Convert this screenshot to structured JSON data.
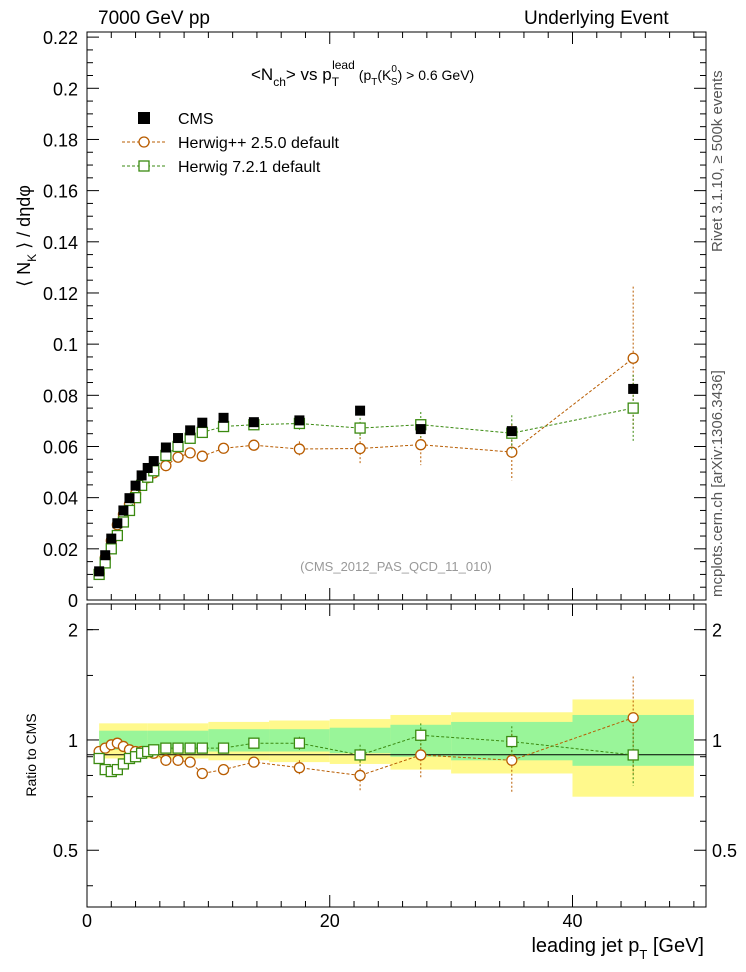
{
  "header": {
    "left": "7000 GeV pp",
    "right": "Underlying Event"
  },
  "side_text": {
    "top": "Rivet 3.1.10, ≥ 500k events",
    "bottom": "mcplots.cern.ch [arXiv:1306.3436]"
  },
  "chart_data": {
    "type": "scatter",
    "title": {
      "main": "<N",
      "main_sub": "ch",
      "mid": "> vs p",
      "pt_sup": "lead",
      "pt_sub": "T",
      "cut_open": "(p",
      "cut_sub": "T",
      "cut_mid": "(K",
      "k_sup": "0",
      "k_sub": "S",
      "cut_close": ") > 0.6 GeV)"
    },
    "ylabel": {
      "pre": "⟨ N",
      "sub": "K",
      "post": " ⟩ / dηdφ"
    },
    "xlabel": {
      "pre": "leading jet p",
      "sub": "T",
      "post": " [GeV]"
    },
    "ratio_ylabel": "Ratio to CMS",
    "watermark": "(CMS_2012_PAS_QCD_11_010)",
    "xlim": [
      0,
      51
    ],
    "ylim": [
      0,
      0.222
    ],
    "ratio_ylim": [
      0.35,
      2.35
    ],
    "x_ticks": [
      "0",
      "20",
      "40"
    ],
    "y_ticks": [
      "0",
      "0.02",
      "0.04",
      "0.06",
      "0.08",
      "0.1",
      "0.12",
      "0.14",
      "0.16",
      "0.18",
      "0.2",
      "0.22"
    ],
    "ratio_ticks": [
      "0.5",
      "1",
      "2"
    ],
    "legend": [
      {
        "name": "CMS",
        "marker": "filled-square",
        "color": "#000000"
      },
      {
        "name": "Herwig++ 2.5.0 default",
        "marker": "open-circle",
        "color": "#b85c00"
      },
      {
        "name": "Herwig 7.2.1 default",
        "marker": "open-square",
        "color": "#3a8a10"
      }
    ],
    "cms": {
      "x": [
        1,
        1.5,
        2,
        2.5,
        3,
        3.5,
        4,
        4.5,
        5,
        5.5,
        6.5,
        7.5,
        8.5,
        9.5,
        11.25,
        13.75,
        17.5,
        22.5,
        27.5,
        35,
        45
      ],
      "y": [
        0.0112,
        0.0175,
        0.024,
        0.03,
        0.035,
        0.0398,
        0.0447,
        0.0487,
        0.0516,
        0.0543,
        0.0596,
        0.0633,
        0.0663,
        0.0693,
        0.0712,
        0.0695,
        0.0702,
        0.074,
        0.0668,
        0.066,
        0.0825
      ]
    },
    "herwig_pp": {
      "x": [
        1,
        1.5,
        2,
        2.5,
        3,
        3.5,
        4,
        4.5,
        5,
        5.5,
        6.5,
        7.5,
        8.5,
        9.5,
        11.25,
        13.75,
        17.5,
        22.5,
        27.5,
        35,
        45
      ],
      "y": [
        0.0103,
        0.0165,
        0.0232,
        0.0294,
        0.0335,
        0.0375,
        0.0415,
        0.0452,
        0.0478,
        0.0497,
        0.0525,
        0.0558,
        0.0575,
        0.0562,
        0.0593,
        0.0605,
        0.059,
        0.0592,
        0.0607,
        0.0578,
        0.0945
      ],
      "yerr": [
        0,
        0,
        0,
        0,
        0,
        0,
        0,
        0,
        0,
        0,
        0,
        0,
        0,
        0,
        0,
        0,
        0.003,
        0.006,
        0.008,
        0.011,
        0.028
      ]
    },
    "herwig7": {
      "x": [
        1,
        1.5,
        2,
        2.5,
        3,
        3.5,
        4,
        4.5,
        5,
        5.5,
        6.5,
        7.5,
        8.5,
        9.5,
        11.25,
        13.75,
        17.5,
        22.5,
        27.5,
        35,
        45
      ],
      "y": [
        0.01,
        0.0145,
        0.02,
        0.0252,
        0.0305,
        0.035,
        0.04,
        0.0448,
        0.048,
        0.0505,
        0.0565,
        0.06,
        0.0632,
        0.0655,
        0.0678,
        0.0685,
        0.069,
        0.0672,
        0.0685,
        0.0652,
        0.075
      ],
      "yerr": [
        0,
        0,
        0,
        0,
        0,
        0,
        0,
        0,
        0,
        0,
        0,
        0,
        0,
        0,
        0,
        0,
        0.003,
        0.004,
        0.005,
        0.007,
        0.013
      ]
    },
    "ratio_herwig_pp": {
      "x": [
        1,
        1.5,
        2,
        2.5,
        3,
        3.5,
        4,
        4.5,
        5,
        5.5,
        6.5,
        7.5,
        8.5,
        9.5,
        11.25,
        13.75,
        17.5,
        22.5,
        27.5,
        35,
        45
      ],
      "y": [
        0.93,
        0.95,
        0.97,
        0.98,
        0.96,
        0.94,
        0.93,
        0.93,
        0.93,
        0.92,
        0.88,
        0.88,
        0.87,
        0.81,
        0.83,
        0.87,
        0.84,
        0.8,
        0.91,
        0.88,
        1.15
      ],
      "yerr": [
        0,
        0,
        0,
        0,
        0,
        0,
        0,
        0,
        0,
        0,
        0,
        0,
        0,
        0,
        0,
        0,
        0.04,
        0.08,
        0.12,
        0.16,
        0.34
      ]
    },
    "ratio_herwig7": {
      "x": [
        1,
        1.5,
        2,
        2.5,
        3,
        3.5,
        4,
        4.5,
        5,
        5.5,
        6.5,
        7.5,
        8.5,
        9.5,
        11.25,
        13.75,
        17.5,
        22.5,
        27.5,
        35,
        45
      ],
      "y": [
        0.89,
        0.83,
        0.82,
        0.83,
        0.86,
        0.89,
        0.9,
        0.92,
        0.93,
        0.94,
        0.95,
        0.95,
        0.95,
        0.95,
        0.95,
        0.98,
        0.98,
        0.91,
        1.03,
        0.99,
        0.91
      ],
      "yerr": [
        0,
        0,
        0,
        0,
        0,
        0,
        0,
        0,
        0,
        0,
        0,
        0,
        0,
        0,
        0,
        0,
        0.04,
        0.06,
        0.08,
        0.1,
        0.16
      ]
    },
    "ratio_bands": {
      "edges": [
        1,
        5,
        10,
        15,
        20,
        25,
        30,
        40,
        50
      ],
      "stat_lo": [
        0.94,
        0.94,
        0.93,
        0.93,
        0.92,
        0.9,
        0.88,
        0.85
      ],
      "stat_hi": [
        1.06,
        1.06,
        1.07,
        1.07,
        1.08,
        1.1,
        1.12,
        1.17
      ],
      "tot_lo": [
        0.89,
        0.89,
        0.88,
        0.87,
        0.86,
        0.83,
        0.81,
        0.7
      ],
      "tot_hi": [
        1.11,
        1.11,
        1.12,
        1.13,
        1.14,
        1.17,
        1.19,
        1.29
      ]
    }
  }
}
